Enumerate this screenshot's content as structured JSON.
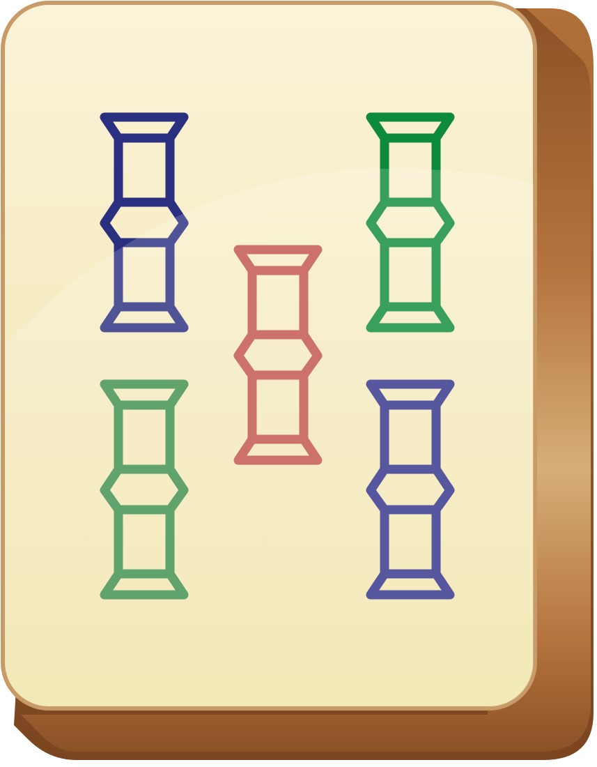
{
  "tile": {
    "suit": "bamboo",
    "rank": 5,
    "colors": {
      "face_top": "#fbf3d9",
      "face_bottom": "#f0e4a8",
      "face_border": "#c89a68",
      "side_dark": "#8b5226",
      "side_mid": "#b5733e",
      "side_light": "#d6ae78"
    },
    "sticks": [
      {
        "name": "stick-top-left",
        "color": "#2a2f80"
      },
      {
        "name": "stick-top-right",
        "color": "#0d8a3a"
      },
      {
        "name": "stick-center",
        "color": "#c2544a"
      },
      {
        "name": "stick-bottom-left",
        "color": "#3e8f4e"
      },
      {
        "name": "stick-bottom-right",
        "color": "#33328a"
      }
    ]
  }
}
